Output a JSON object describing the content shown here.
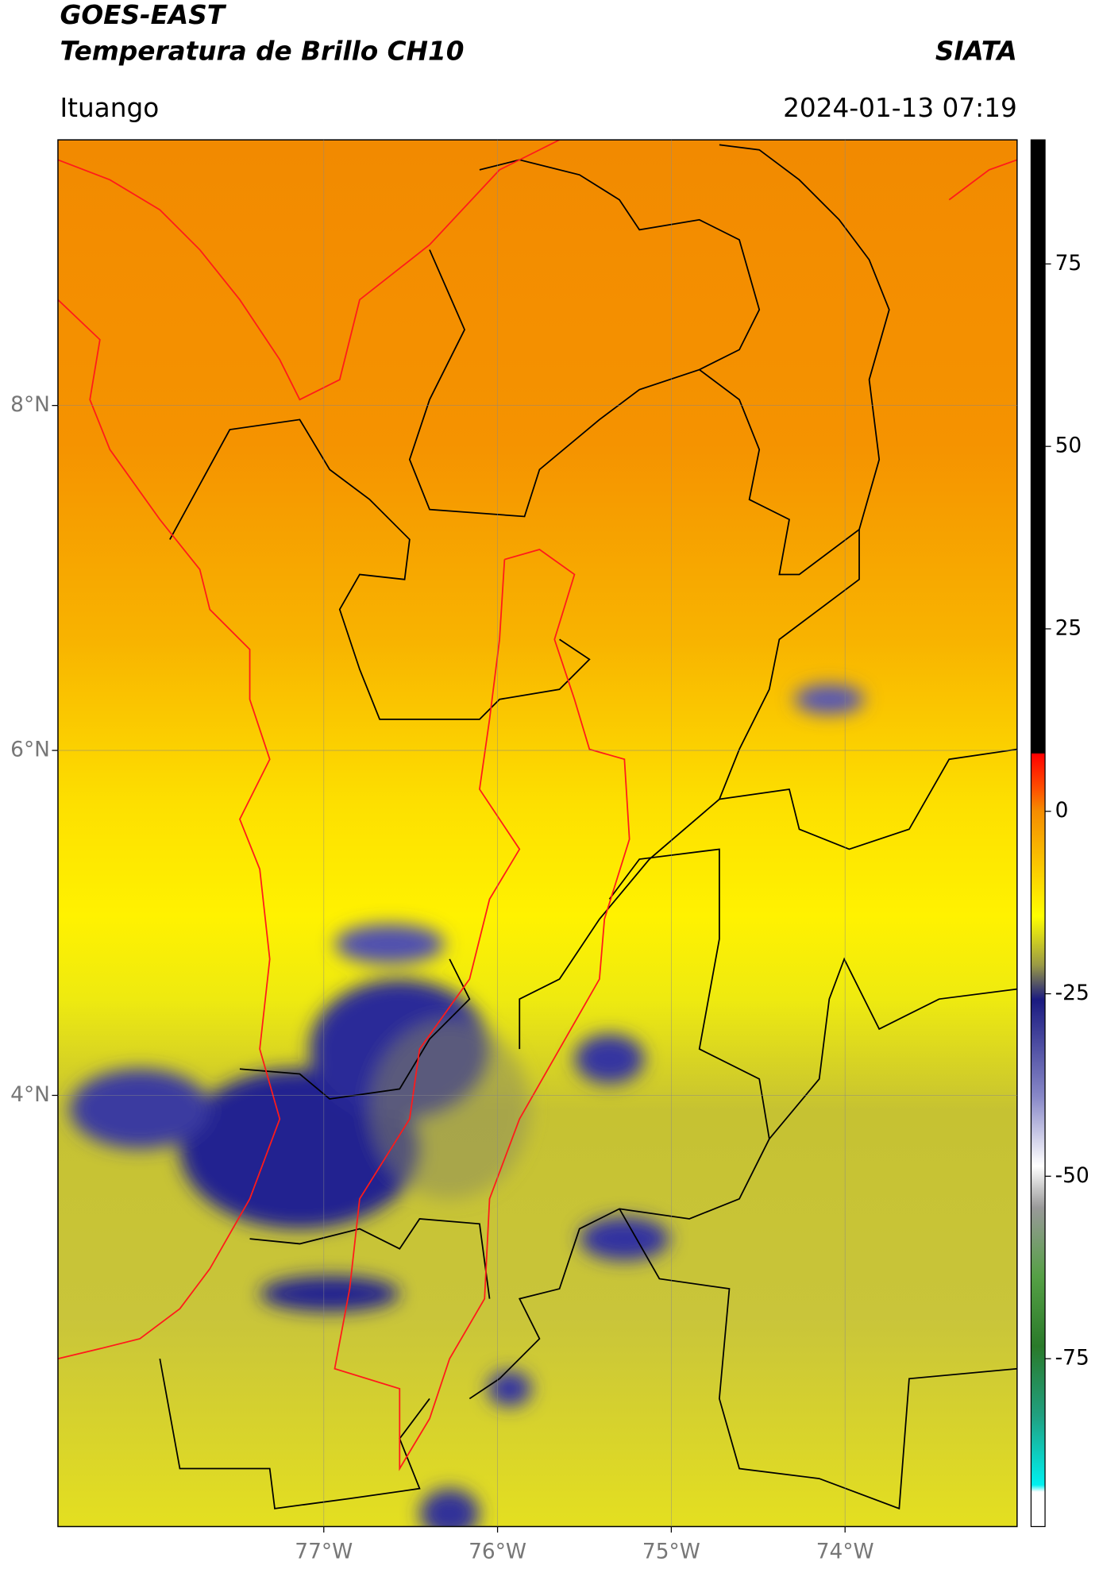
{
  "header": {
    "title": "GOES-EAST",
    "subtitle": "Temperatura de Brillo CH10",
    "source": "SIATA",
    "location": "Ituango",
    "datetime": "2024-01-13 07:19"
  },
  "map": {
    "lonlim": [
      -78.53,
      -73.01
    ],
    "latlim": [
      1.5,
      9.54
    ],
    "lonticks": [
      {
        "value": -77,
        "label": "77°W"
      },
      {
        "value": -76,
        "label": "76°W"
      },
      {
        "value": -75,
        "label": "75°W"
      },
      {
        "value": -74,
        "label": "74°W"
      }
    ],
    "latticks": [
      {
        "value": 8,
        "label": "8°N"
      },
      {
        "value": 6,
        "label": "6°N"
      },
      {
        "value": 4,
        "label": "4°N"
      }
    ],
    "grid": true
  },
  "colorbar": {
    "lim": [
      -98,
      92
    ],
    "ticks": [
      75,
      50,
      25,
      0,
      -25,
      -50,
      -75
    ]
  }
}
